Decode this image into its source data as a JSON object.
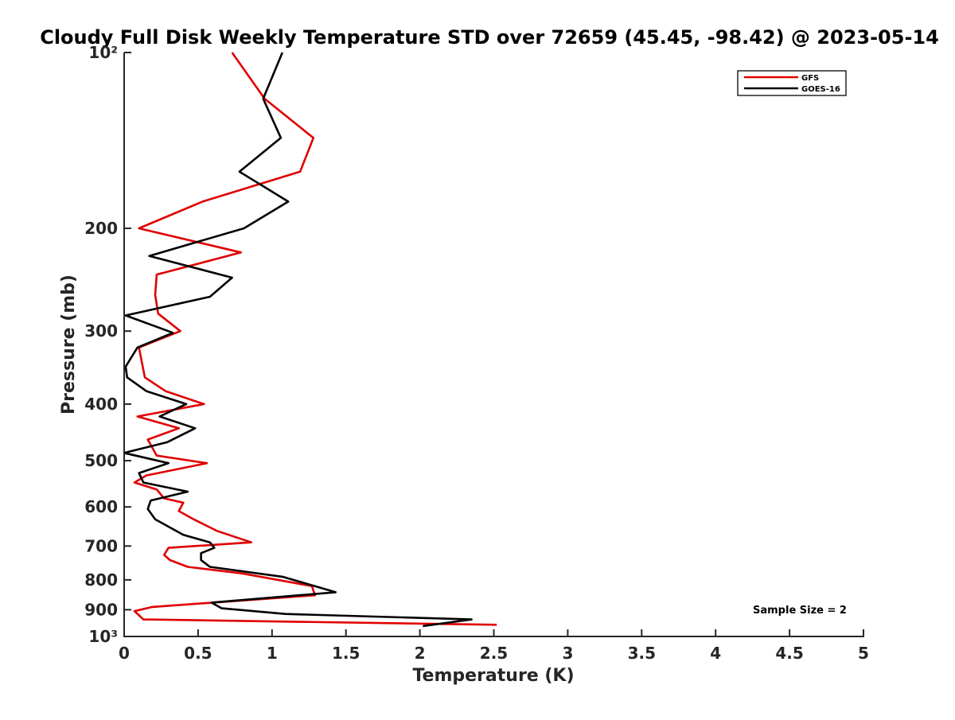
{
  "chart_data": {
    "type": "line",
    "title": "Cloudy Full Disk Weekly Temperature STD over 72659 (45.45, -98.42) @ 2023-05-14",
    "xlabel": "Temperature (K)",
    "ylabel": "Pressure (mb)",
    "xlim": [
      0,
      5
    ],
    "ylim": [
      100,
      1000
    ],
    "y_scale": "log",
    "y_reversed": true,
    "grid": false,
    "legend_position": "top-right",
    "x_ticks": [
      0,
      0.5,
      1,
      1.5,
      2,
      2.5,
      3,
      3.5,
      4,
      4.5,
      5
    ],
    "x_tick_labels": [
      "0",
      "0.5",
      "1",
      "1.5",
      "2",
      "2.5",
      "3",
      "3.5",
      "4",
      "4.5",
      "5"
    ],
    "y_ticks": [
      100,
      200,
      300,
      400,
      500,
      600,
      700,
      800,
      900,
      1000
    ],
    "y_tick_labels": [
      "10²",
      "200",
      "300",
      "400",
      "500",
      "600",
      "700",
      "800",
      "900",
      "10³"
    ],
    "annotation": "Sample Size = 2",
    "series": [
      {
        "name": "GFS",
        "color": "#e00000",
        "points": [
          {
            "x": 0.73,
            "p": 100
          },
          {
            "x": 0.95,
            "p": 120
          },
          {
            "x": 1.28,
            "p": 140
          },
          {
            "x": 1.19,
            "p": 160
          },
          {
            "x": 0.53,
            "p": 180
          },
          {
            "x": 0.1,
            "p": 200
          },
          {
            "x": 0.79,
            "p": 220
          },
          {
            "x": 0.22,
            "p": 240
          },
          {
            "x": 0.21,
            "p": 260
          },
          {
            "x": 0.23,
            "p": 280
          },
          {
            "x": 0.38,
            "p": 300
          },
          {
            "x": 0.1,
            "p": 320
          },
          {
            "x": 0.14,
            "p": 360
          },
          {
            "x": 0.28,
            "p": 380
          },
          {
            "x": 0.54,
            "p": 400
          },
          {
            "x": 0.09,
            "p": 420
          },
          {
            "x": 0.37,
            "p": 440
          },
          {
            "x": 0.16,
            "p": 460
          },
          {
            "x": 0.22,
            "p": 490
          },
          {
            "x": 0.56,
            "p": 505
          },
          {
            "x": 0.15,
            "p": 530
          },
          {
            "x": 0.07,
            "p": 545
          },
          {
            "x": 0.22,
            "p": 560
          },
          {
            "x": 0.27,
            "p": 580
          },
          {
            "x": 0.4,
            "p": 590
          },
          {
            "x": 0.37,
            "p": 610
          },
          {
            "x": 0.47,
            "p": 630
          },
          {
            "x": 0.63,
            "p": 660
          },
          {
            "x": 0.86,
            "p": 690
          },
          {
            "x": 0.3,
            "p": 705
          },
          {
            "x": 0.27,
            "p": 725
          },
          {
            "x": 0.31,
            "p": 740
          },
          {
            "x": 0.43,
            "p": 760
          },
          {
            "x": 0.8,
            "p": 780
          },
          {
            "x": 1.27,
            "p": 820
          },
          {
            "x": 1.29,
            "p": 850
          },
          {
            "x": 0.19,
            "p": 890
          },
          {
            "x": 0.07,
            "p": 905
          },
          {
            "x": 0.13,
            "p": 935
          },
          {
            "x": 2.52,
            "p": 955
          }
        ]
      },
      {
        "name": "GOES-16",
        "color": "#000000",
        "points": [
          {
            "x": 1.07,
            "p": 100
          },
          {
            "x": 0.94,
            "p": 120
          },
          {
            "x": 1.06,
            "p": 140
          },
          {
            "x": 0.78,
            "p": 160
          },
          {
            "x": 1.11,
            "p": 180
          },
          {
            "x": 0.81,
            "p": 200
          },
          {
            "x": 0.17,
            "p": 223
          },
          {
            "x": 0.73,
            "p": 243
          },
          {
            "x": 0.58,
            "p": 262
          },
          {
            "x": 0.01,
            "p": 282
          },
          {
            "x": 0.33,
            "p": 302
          },
          {
            "x": 0.09,
            "p": 320
          },
          {
            "x": 0.01,
            "p": 345
          },
          {
            "x": 0.02,
            "p": 360
          },
          {
            "x": 0.15,
            "p": 380
          },
          {
            "x": 0.42,
            "p": 400
          },
          {
            "x": 0.24,
            "p": 420
          },
          {
            "x": 0.48,
            "p": 440
          },
          {
            "x": 0.29,
            "p": 465
          },
          {
            "x": 0.0,
            "p": 485
          },
          {
            "x": 0.3,
            "p": 505
          },
          {
            "x": 0.1,
            "p": 525
          },
          {
            "x": 0.13,
            "p": 545
          },
          {
            "x": 0.43,
            "p": 565
          },
          {
            "x": 0.18,
            "p": 585
          },
          {
            "x": 0.16,
            "p": 605
          },
          {
            "x": 0.21,
            "p": 630
          },
          {
            "x": 0.4,
            "p": 670
          },
          {
            "x": 0.58,
            "p": 690
          },
          {
            "x": 0.61,
            "p": 705
          },
          {
            "x": 0.52,
            "p": 720
          },
          {
            "x": 0.52,
            "p": 740
          },
          {
            "x": 0.58,
            "p": 760
          },
          {
            "x": 1.07,
            "p": 790
          },
          {
            "x": 1.29,
            "p": 820
          },
          {
            "x": 1.43,
            "p": 840
          },
          {
            "x": 0.59,
            "p": 875
          },
          {
            "x": 0.66,
            "p": 895
          },
          {
            "x": 1.09,
            "p": 915
          },
          {
            "x": 2.35,
            "p": 935
          },
          {
            "x": 2.02,
            "p": 960
          }
        ]
      }
    ]
  }
}
